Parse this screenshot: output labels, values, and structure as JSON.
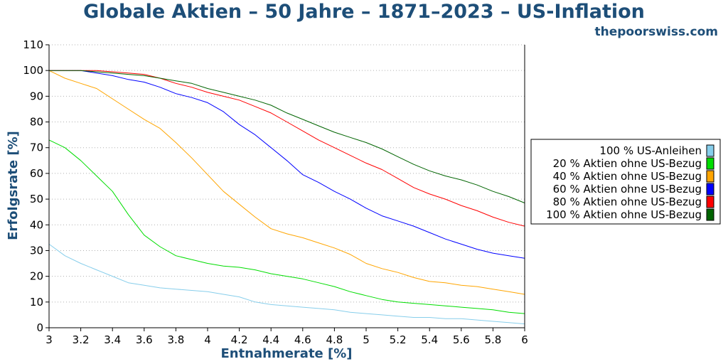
{
  "brand": "thepoorswiss.com",
  "chart_data": {
    "type": "line",
    "title": "Globale Aktien – 50 Jahre – 1871–2023 – US-Inflation",
    "xlabel": "Entnahmerate [%]",
    "ylabel": "Erfolgsrate [%]",
    "xlim": [
      3,
      6
    ],
    "ylim": [
      0,
      110
    ],
    "x_ticks": [
      "3",
      "3.2",
      "3.4",
      "3.6",
      "3.8",
      "4",
      "4.2",
      "4.4",
      "4.6",
      "4.8",
      "5",
      "5.2",
      "5.4",
      "5.6",
      "5.8",
      "6"
    ],
    "y_ticks": [
      "0",
      "10",
      "20",
      "30",
      "40",
      "50",
      "60",
      "70",
      "80",
      "90",
      "100",
      "110"
    ],
    "grid": "horizontal dotted",
    "legend_position": "right",
    "x": [
      3.0,
      3.1,
      3.2,
      3.3,
      3.4,
      3.5,
      3.6,
      3.7,
      3.8,
      3.9,
      4.0,
      4.1,
      4.2,
      4.3,
      4.4,
      4.5,
      4.6,
      4.7,
      4.8,
      4.9,
      5.0,
      5.1,
      5.2,
      5.3,
      5.4,
      5.5,
      5.6,
      5.7,
      5.8,
      5.9,
      6.0
    ],
    "series": [
      {
        "name": "100 % US-Anleihen",
        "color": "#87ceeb",
        "values": [
          32.5,
          28,
          25,
          22.5,
          20,
          17.5,
          16.5,
          15.5,
          15,
          14.5,
          14,
          13,
          12,
          10,
          9,
          8.5,
          8,
          7.5,
          7,
          6,
          5.5,
          5,
          4.5,
          4,
          4,
          3.5,
          3.5,
          3,
          2.5,
          2,
          1.5
        ]
      },
      {
        "name": "20 % Aktien ohne US-Bezug",
        "color": "#00dd00",
        "values": [
          73,
          70,
          65,
          59,
          53,
          44,
          36,
          31.5,
          28,
          26.5,
          25,
          24,
          23.5,
          22.5,
          21,
          20,
          19,
          17.5,
          16,
          14,
          12.5,
          11,
          10,
          9.5,
          9,
          8.5,
          8,
          7.5,
          7,
          6,
          5.5
        ]
      },
      {
        "name": "40 % Aktien ohne US-Bezug",
        "color": "#ffa500",
        "values": [
          100,
          97,
          95,
          93,
          89,
          85,
          81,
          77.5,
          72,
          66,
          59.5,
          53,
          48,
          43,
          38.5,
          36.5,
          35,
          33,
          31,
          28.5,
          25,
          23,
          21.5,
          19.5,
          18,
          17.5,
          16.5,
          16,
          15,
          14,
          13
        ]
      },
      {
        "name": "60 % Aktien ohne US-Bezug",
        "color": "#0000ff",
        "values": [
          100,
          100,
          100,
          99,
          98,
          96.5,
          95.5,
          93.5,
          91,
          89.5,
          87.5,
          84,
          79,
          75,
          70,
          65,
          59.5,
          56.5,
          53,
          50,
          46.5,
          43.5,
          41.5,
          39.5,
          37,
          34.5,
          32.5,
          30.5,
          29,
          28,
          27
        ]
      },
      {
        "name": "80 % Aktien ohne US-Bezug",
        "color": "#ff0000",
        "values": [
          100,
          100,
          100,
          100,
          99.5,
          99,
          98.5,
          97,
          95,
          93.5,
          91.5,
          90,
          88.5,
          86,
          83.5,
          80,
          76.5,
          73,
          70,
          67,
          64,
          61.5,
          58,
          54.5,
          52,
          50,
          47.5,
          45.5,
          43,
          41,
          39.5
        ]
      },
      {
        "name": "100 % Aktien ohne US-Bezug",
        "color": "#006400",
        "values": [
          100,
          100,
          100,
          99.5,
          99,
          98.5,
          98,
          97,
          96,
          95,
          93,
          91.5,
          90,
          88.5,
          86.5,
          83.5,
          81,
          78.5,
          76,
          74,
          72,
          69.5,
          66.5,
          63.5,
          61,
          59,
          57.5,
          55.5,
          53,
          51,
          48.5
        ]
      }
    ]
  }
}
